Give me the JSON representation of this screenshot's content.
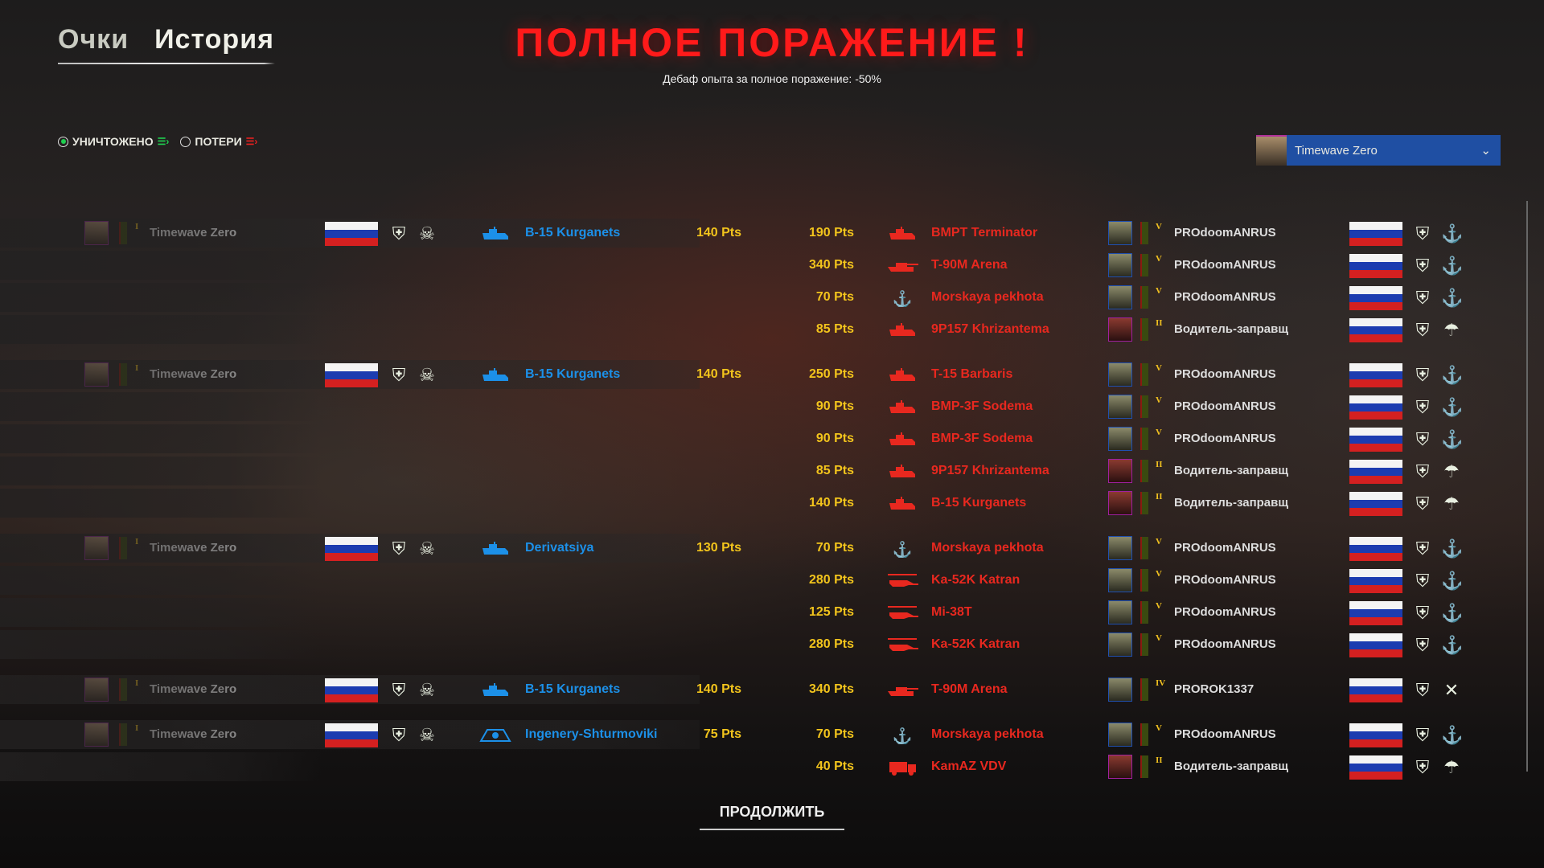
{
  "tabs": [
    {
      "label": "Очки",
      "active": false
    },
    {
      "label": "История",
      "active": true
    }
  ],
  "title": "ПОЛНОЕ ПОРАЖЕНИЕ !",
  "subtitle": "Дебаф опыта за полное поражение: -50%",
  "filters": [
    {
      "label": "УНИЧТОЖЕНО",
      "selected": true
    },
    {
      "label": "ПОТЕРИ",
      "selected": false
    }
  ],
  "player_select": {
    "value": "Timewave Zero"
  },
  "continue_label": "ПРОДОЛЖИТЬ",
  "colors": {
    "defeat": "#ff1a1a",
    "own_unit": "#1c90e8",
    "enemy_unit": "#e8281f",
    "points": "#f2c41c",
    "dropdown": "#1f4fa3"
  },
  "groups": [
    {
      "player": "Timewave Zero",
      "rank": "I",
      "unit": "B-15 Kurganets",
      "unit_icon": "ifv-icon",
      "unit_pts": "140 Pts",
      "kills": [
        {
          "pts": "190 Pts",
          "unit": "BMPT Terminator",
          "icon": "bmpt-icon",
          "player": "PROdoomANRUS",
          "rank": "V",
          "branch": "anchor-icon"
        },
        {
          "pts": "340 Pts",
          "unit": "T-90M Arena",
          "icon": "tank-icon",
          "player": "PROdoomANRUS",
          "rank": "V",
          "branch": "anchor-icon"
        },
        {
          "pts": "70 Pts",
          "unit": "Morskaya pekhota",
          "icon": "anchor-icon",
          "player": "PROdoomANRUS",
          "rank": "V",
          "branch": "anchor-icon"
        },
        {
          "pts": "85 Pts",
          "unit": "9P157 Khrizantema",
          "icon": "atgm-icon",
          "player": "Водитель-заправщ",
          "rank": "II",
          "branch": "paratrooper-icon"
        }
      ]
    },
    {
      "player": "Timewave Zero",
      "rank": "I",
      "unit": "B-15 Kurganets",
      "unit_icon": "ifv-icon",
      "unit_pts": "140 Pts",
      "kills": [
        {
          "pts": "250 Pts",
          "unit": "T-15 Barbaris",
          "icon": "ifv-icon",
          "player": "PROdoomANRUS",
          "rank": "V",
          "branch": "anchor-icon"
        },
        {
          "pts": "90 Pts",
          "unit": "BMP-3F Sodema",
          "icon": "ifv-icon",
          "player": "PROdoomANRUS",
          "rank": "V",
          "branch": "anchor-icon"
        },
        {
          "pts": "90 Pts",
          "unit": "BMP-3F Sodema",
          "icon": "ifv-icon",
          "player": "PROdoomANRUS",
          "rank": "V",
          "branch": "anchor-icon"
        },
        {
          "pts": "85 Pts",
          "unit": "9P157 Khrizantema",
          "icon": "atgm-icon",
          "player": "Водитель-заправщ",
          "rank": "II",
          "branch": "paratrooper-icon"
        },
        {
          "pts": "140 Pts",
          "unit": "B-15 Kurganets",
          "icon": "ifv-icon",
          "player": "Водитель-заправщ",
          "rank": "II",
          "branch": "paratrooper-icon"
        }
      ]
    },
    {
      "player": "Timewave Zero",
      "rank": "I",
      "unit": "Derivatsiya",
      "unit_icon": "spaag-icon",
      "unit_pts": "130 Pts",
      "kills": [
        {
          "pts": "70 Pts",
          "unit": "Morskaya pekhota",
          "icon": "anchor-icon",
          "player": "PROdoomANRUS",
          "rank": "V",
          "branch": "anchor-icon"
        },
        {
          "pts": "280 Pts",
          "unit": "Ka-52K Katran",
          "icon": "helicopter-icon",
          "player": "PROdoomANRUS",
          "rank": "V",
          "branch": "anchor-icon"
        },
        {
          "pts": "125 Pts",
          "unit": "Mi-38T",
          "icon": "helicopter-icon",
          "player": "PROdoomANRUS",
          "rank": "V",
          "branch": "anchor-icon"
        },
        {
          "pts": "280 Pts",
          "unit": "Ka-52K Katran",
          "icon": "helicopter-icon",
          "player": "PROdoomANRUS",
          "rank": "V",
          "branch": "anchor-icon"
        }
      ]
    },
    {
      "player": "Timewave Zero",
      "rank": "I",
      "unit": "B-15 Kurganets",
      "unit_icon": "ifv-icon",
      "unit_pts": "140 Pts",
      "kills": [
        {
          "pts": "340 Pts",
          "unit": "T-90M Arena",
          "icon": "tank-icon",
          "player": "PROROK1337",
          "rank": "IV",
          "branch": "crossed-rifles-icon"
        }
      ]
    },
    {
      "player": "Timewave Zero",
      "rank": "I",
      "unit": "Ingenery-Shturmoviki",
      "unit_icon": "engineer-icon",
      "unit_pts": "75 Pts",
      "kills": [
        {
          "pts": "70 Pts",
          "unit": "Morskaya pekhota",
          "icon": "anchor-icon",
          "player": "PROdoomANRUS",
          "rank": "V",
          "branch": "anchor-icon"
        },
        {
          "pts": "40 Pts",
          "unit": "KamAZ VDV",
          "icon": "truck-icon",
          "player": "Водитель-заправщ",
          "rank": "II",
          "branch": "paratrooper-icon"
        }
      ]
    }
  ]
}
